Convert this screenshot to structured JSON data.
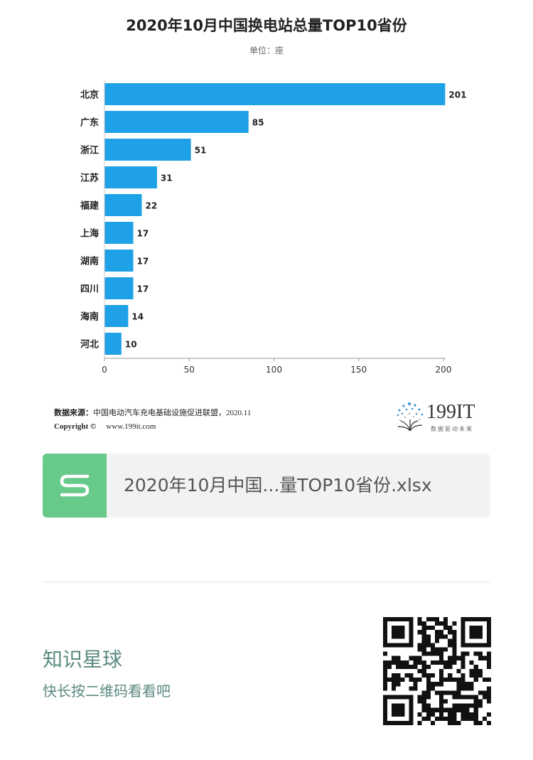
{
  "chart_data": {
    "type": "bar",
    "orientation": "horizontal",
    "title": "2020年10月中国换电站总量TOP10省份",
    "subtitle": "单位：座",
    "categories": [
      "北京",
      "广东",
      "浙江",
      "江苏",
      "福建",
      "上海",
      "湖南",
      "四川",
      "海南",
      "河北"
    ],
    "values": [
      201,
      85,
      51,
      31,
      22,
      17,
      17,
      17,
      14,
      10
    ],
    "xlim": [
      0,
      200
    ],
    "xticks": [
      "0",
      "50",
      "100",
      "150",
      "200"
    ],
    "xlabel": "",
    "ylabel": "",
    "grid": false,
    "bar_color": "#1ea1e6"
  },
  "source": {
    "label": "数据来源：",
    "text": "中国电动汽车充电基础设施促进联盟，2020.11"
  },
  "copyright": {
    "label": "Copyright ©",
    "url": "www.199it.com"
  },
  "logo": {
    "text": "199IT",
    "tagline": "数据驱动未来",
    "icon": "dandelion-logo-icon"
  },
  "file_card": {
    "icon": "spreadsheet-s-icon",
    "icon_color": "#67c98a",
    "filename": "2020年10月中国...量TOP10省份.xlsx"
  },
  "zsxq": {
    "title": "知识星球",
    "subtitle": "快长按二维码看看吧",
    "text_color": "#5b8a80",
    "qr_icon": "qr-code-icon"
  }
}
